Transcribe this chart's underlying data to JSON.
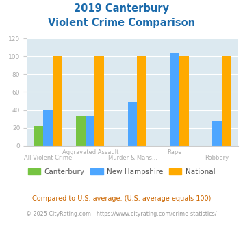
{
  "title_line1": "2019 Canterbury",
  "title_line2": "Violent Crime Comparison",
  "categories": [
    "All Violent Crime",
    "Aggravated Assault",
    "Murder & Mans...",
    "Rape",
    "Robbery"
  ],
  "top_labels": [
    "",
    "Aggravated Assault",
    "",
    "Rape",
    ""
  ],
  "bot_labels": [
    "All Violent Crime",
    "",
    "Murder & Mans...",
    "",
    "Robbery"
  ],
  "series": {
    "Canterbury": [
      22,
      33,
      0,
      0,
      0
    ],
    "New Hampshire": [
      40,
      33,
      49,
      103,
      28
    ],
    "National": [
      100,
      100,
      100,
      100,
      100
    ]
  },
  "colors": {
    "Canterbury": "#76c442",
    "New Hampshire": "#4da6ff",
    "National": "#ffaa00"
  },
  "ylim": [
    0,
    120
  ],
  "yticks": [
    0,
    20,
    40,
    60,
    80,
    100,
    120
  ],
  "plot_bg_color": "#dce9f0",
  "title_color": "#1a6aab",
  "axis_label_color": "#aaaaaa",
  "legend_text_color": "#555555",
  "footnote1": "Compared to U.S. average. (U.S. average equals 100)",
  "footnote2": "© 2025 CityRating.com - https://www.cityrating.com/crime-statistics/",
  "footnote1_color": "#cc6600",
  "footnote2_color": "#999999"
}
